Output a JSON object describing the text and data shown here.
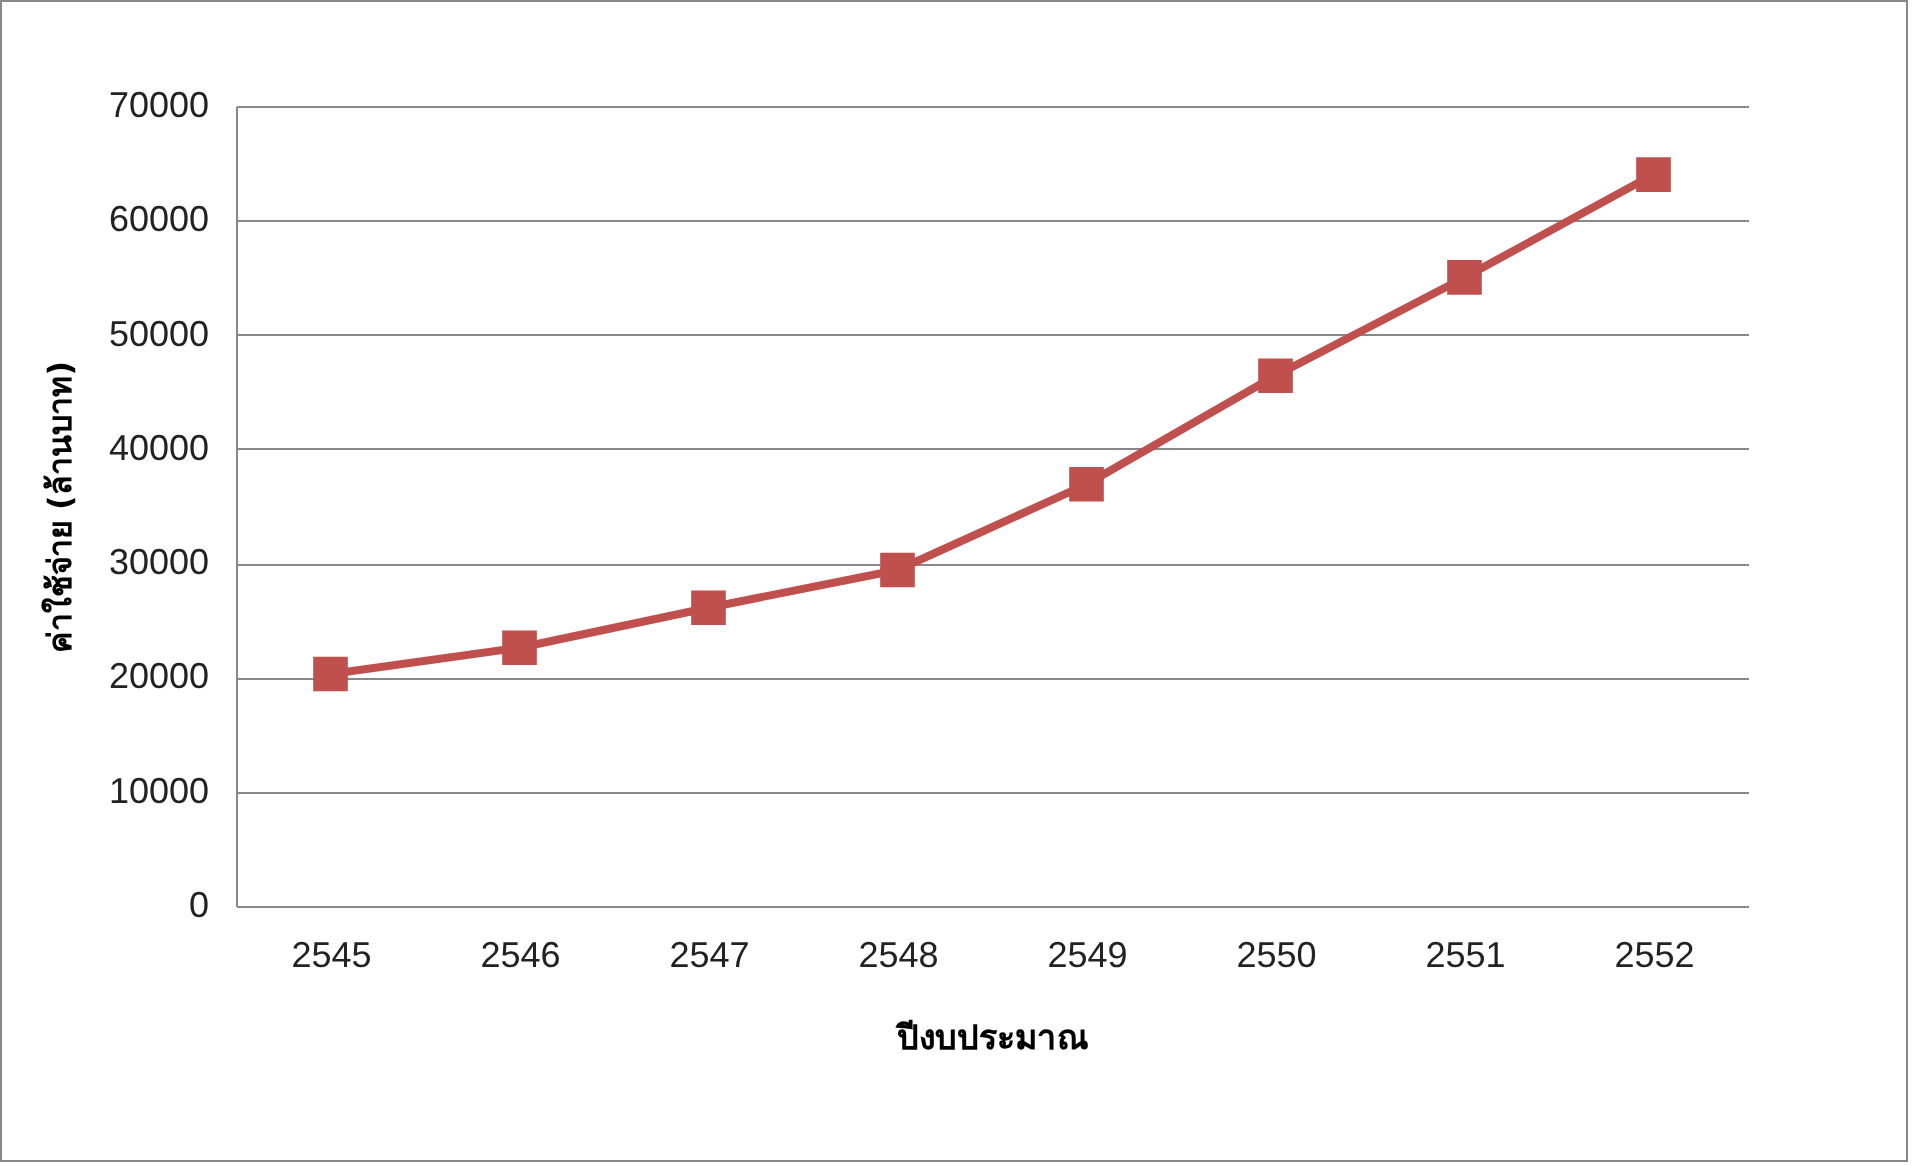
{
  "chart_data": {
    "type": "line",
    "xlabel": "ปีงบประมาณ",
    "ylabel": "ค่าใช้จ่าย (ล้านบาท)",
    "categories": [
      "2545",
      "2546",
      "2547",
      "2548",
      "2549",
      "2550",
      "2551",
      "2552"
    ],
    "series": [
      {
        "color": "#c0504d",
        "values": [
          20300,
          22600,
          26100,
          29400,
          36900,
          46400,
          55000,
          64000
        ]
      }
    ],
    "ylim": [
      0,
      70000
    ],
    "yticks": [
      0,
      10000,
      20000,
      30000,
      40000,
      50000,
      60000,
      70000
    ],
    "grid": "y",
    "legend": false,
    "marker": "square",
    "line_style": "solid"
  }
}
